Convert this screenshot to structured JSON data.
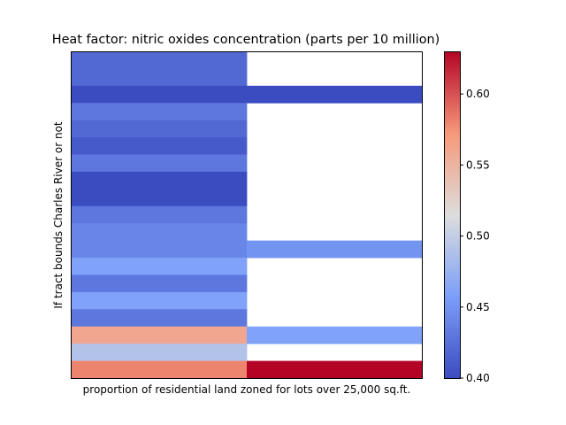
{
  "chart_data": {
    "type": "heatmap",
    "title": "Heat factor: nitric oxides concentration (parts per 10 million)",
    "xlabel": "proportion of residential land zoned for lots over 25,000 sq.ft.",
    "ylabel": "If tract bounds Charles River or not",
    "x_tick_labels_shown": false,
    "y_tick_labels_shown": false,
    "n_columns": 2,
    "n_rows": 19,
    "colormap": "coolwarm",
    "color_range": [
      0.4,
      0.63
    ],
    "colorbar_ticks": [
      0.4,
      0.45,
      0.5,
      0.55,
      0.6
    ],
    "colorbar_tick_labels": [
      "0.40",
      "0.45",
      "0.50",
      "0.55",
      "0.60"
    ],
    "cells": [
      [
        0.42,
        null
      ],
      [
        0.42,
        null
      ],
      [
        0.4,
        0.4
      ],
      [
        0.43,
        null
      ],
      [
        0.42,
        null
      ],
      [
        0.41,
        null
      ],
      [
        0.43,
        null
      ],
      [
        0.4,
        null
      ],
      [
        0.4,
        null
      ],
      [
        0.43,
        null
      ],
      [
        0.44,
        null
      ],
      [
        0.44,
        0.45
      ],
      [
        0.46,
        null
      ],
      [
        0.43,
        null
      ],
      [
        0.46,
        null
      ],
      [
        0.43,
        null
      ],
      [
        0.56,
        0.46
      ],
      [
        0.49,
        null
      ],
      [
        0.58,
        0.63
      ]
    ]
  }
}
